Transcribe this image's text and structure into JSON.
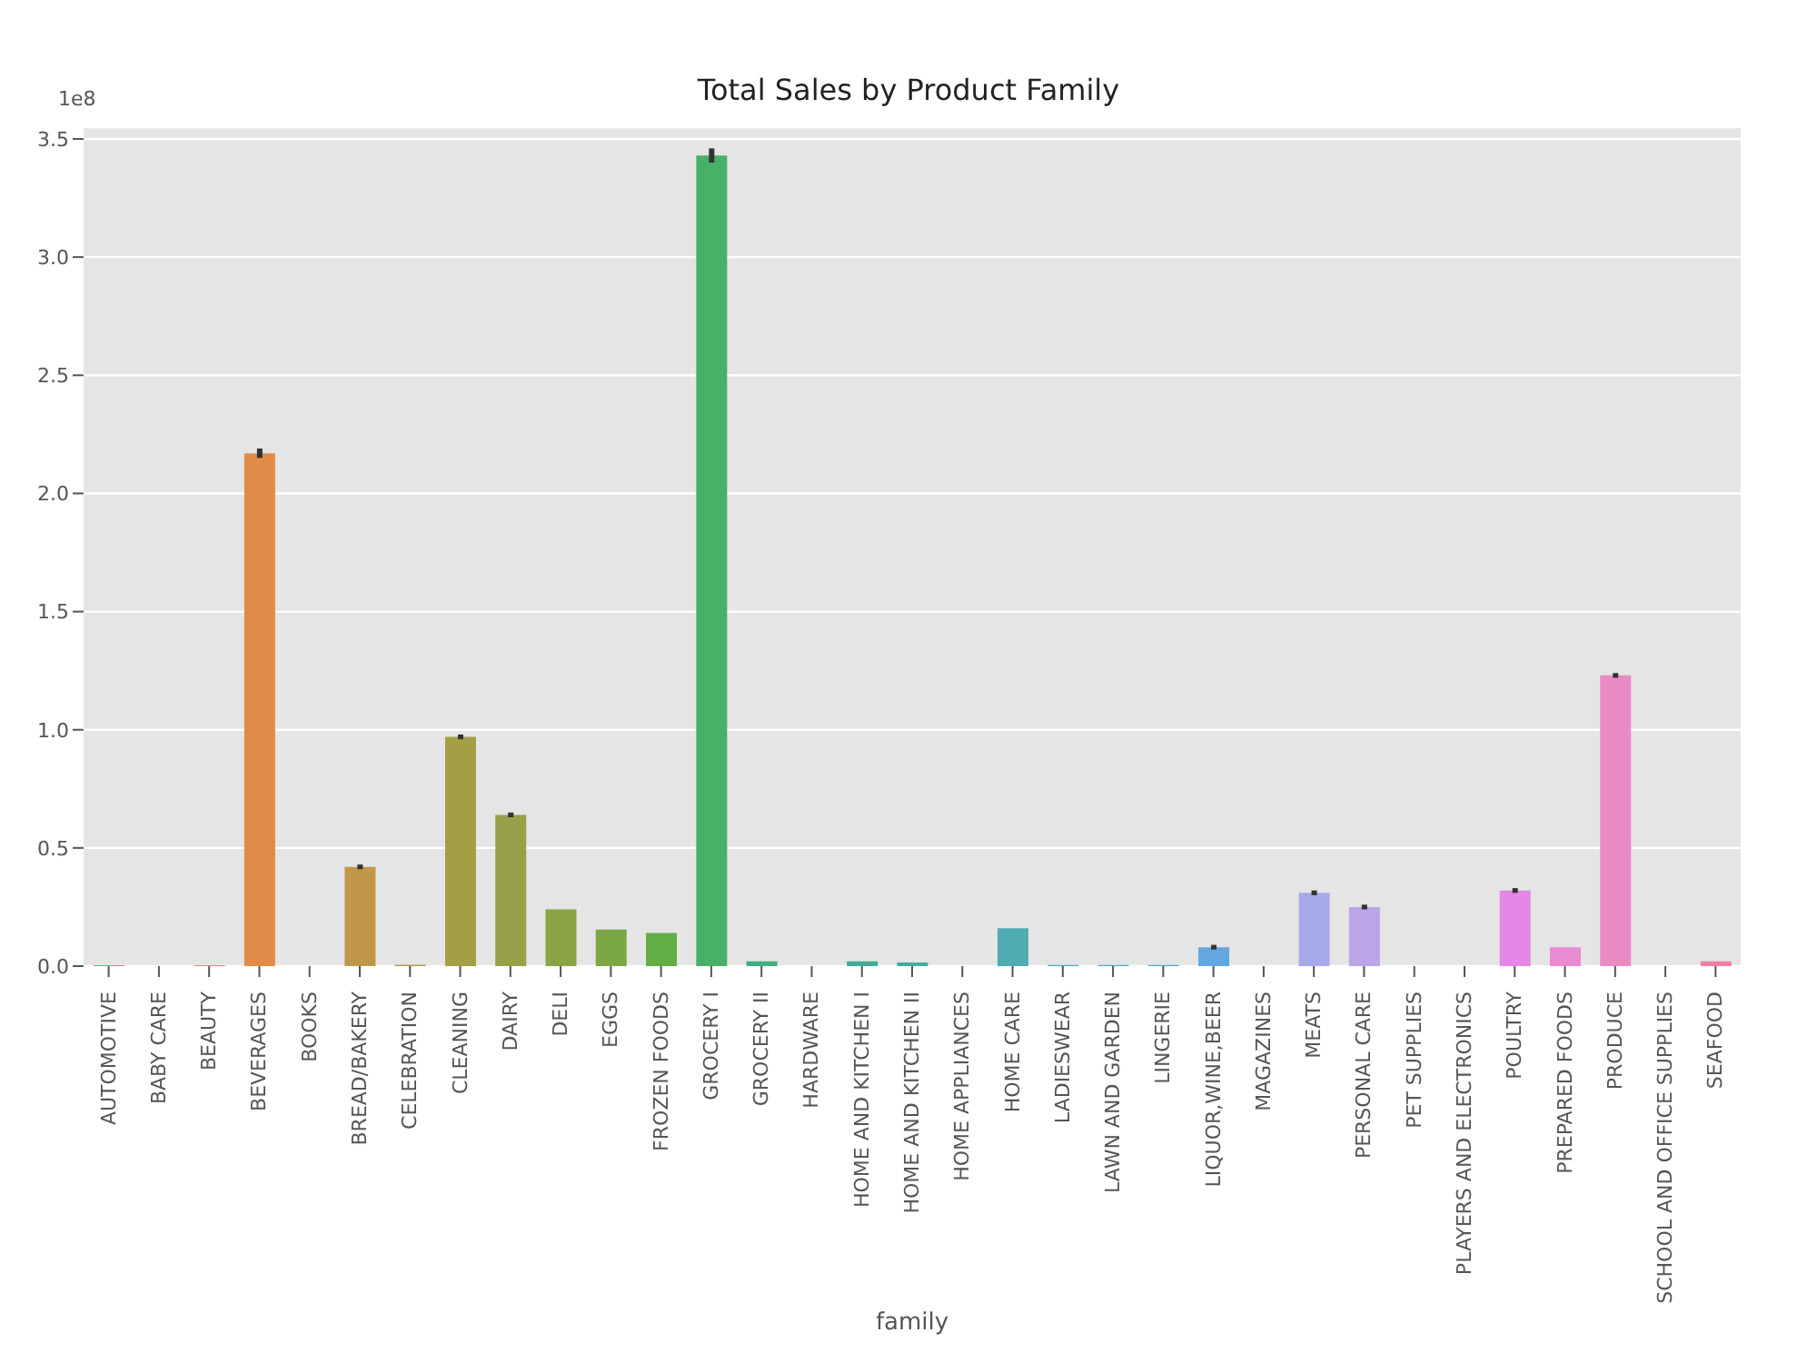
{
  "chart_data": {
    "type": "bar",
    "title": "Total Sales by Product Family",
    "xlabel": "family",
    "annotations": [
      "1e8"
    ],
    "categories": [
      "AUTOMOTIVE",
      "BABY CARE",
      "BEAUTY",
      "BEVERAGES",
      "BOOKS",
      "BREAD/BAKERY",
      "CELEBRATION",
      "CLEANING",
      "DAIRY",
      "DELI",
      "EGGS",
      "FROZEN FOODS",
      "GROCERY I",
      "GROCERY II",
      "HARDWARE",
      "HOME AND KITCHEN I",
      "HOME AND KITCHEN II",
      "HOME APPLIANCES",
      "HOME CARE",
      "LADIESWEAR",
      "LAWN AND GARDEN",
      "LINGERIE",
      "LIQUOR,WINE,BEER",
      "MAGAZINES",
      "MEATS",
      "PERSONAL CARE",
      "PET SUPPLIES",
      "PLAYERS AND ELECTRONICS",
      "POULTRY",
      "PREPARED FOODS",
      "PRODUCE",
      "SCHOOL AND OFFICE SUPPLIES",
      "SEAFOOD"
    ],
    "values": [
      0.004,
      null,
      0.004,
      2.17,
      null,
      0.42,
      0.006,
      0.97,
      0.64,
      0.24,
      0.155,
      0.14,
      3.43,
      0.02,
      null,
      0.02,
      0.015,
      null,
      0.16,
      0.005,
      0.005,
      0.005,
      0.08,
      null,
      0.31,
      0.25,
      null,
      null,
      0.32,
      0.08,
      1.23,
      null,
      0.02
    ],
    "errors": [
      null,
      null,
      null,
      0.02,
      null,
      0.01,
      null,
      0.01,
      0.01,
      null,
      null,
      null,
      0.03,
      null,
      null,
      null,
      null,
      null,
      null,
      null,
      null,
      null,
      0.01,
      null,
      0.01,
      0.01,
      null,
      null,
      0.01,
      null,
      0.01,
      null,
      null
    ],
    "colors": [
      "#f2748a",
      "#f07a77",
      "#ee8070",
      "#e08c48",
      "#d1923f",
      "#c0974a",
      "#b29b48",
      "#a39f45",
      "#98a14a",
      "#8aa445",
      "#7ba845",
      "#62ae44",
      "#48b168",
      "#3fb07e",
      "#3eaf8c",
      "#3eae96",
      "#40aea0",
      "#42adaa",
      "#4facb0",
      "#48aabb",
      "#4ba8c6",
      "#52a6d2",
      "#63a6e0",
      "#8aa4e6",
      "#a6aae9",
      "#bba5e8",
      "#c9a0e8",
      "#d89ce8",
      "#e487e6",
      "#e98bd0",
      "#e98cc4",
      "#ec86b4",
      "#ef7ea2"
    ],
    "ylim": [
      0,
      3.55
    ],
    "yticks": [
      {
        "value": 0,
        "label": "0.0"
      },
      {
        "value": 0.5,
        "label": "0.5"
      },
      {
        "value": 1,
        "label": "1.0"
      },
      {
        "value": 1.5,
        "label": "1.5"
      },
      {
        "value": 2,
        "label": "2.0"
      },
      {
        "value": 2.5,
        "label": "2.5"
      },
      {
        "value": 3,
        "label": "3.0"
      },
      {
        "value": 3.5,
        "label": "3.5"
      }
    ],
    "grid": "y"
  }
}
